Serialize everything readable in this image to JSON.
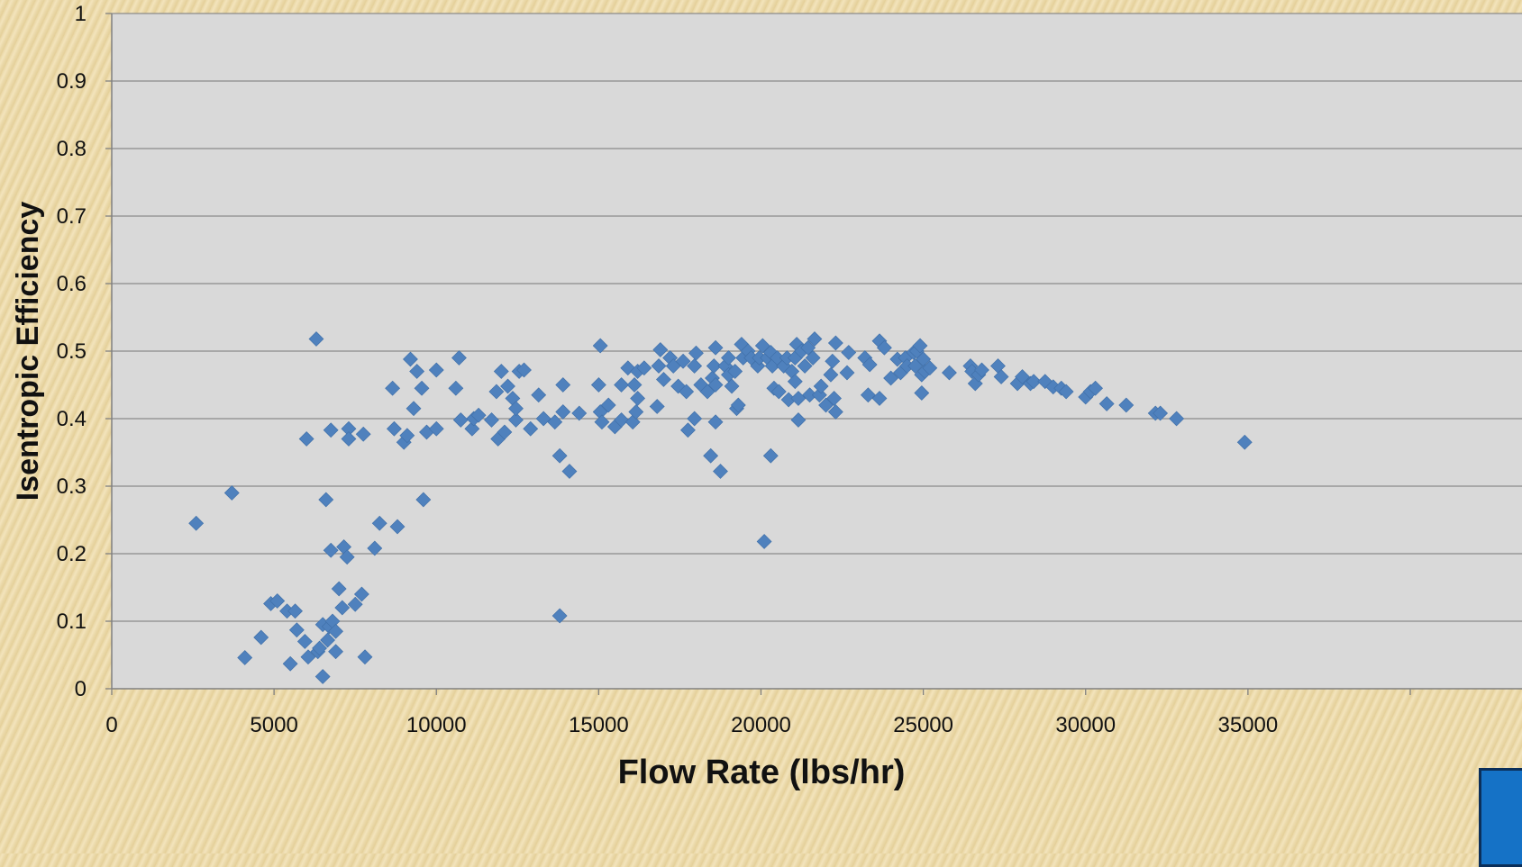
{
  "chart_data": {
    "type": "scatter",
    "title": "",
    "xlabel": "Flow Rate (lbs/hr)",
    "ylabel": "Isentropic Efficiency",
    "xlim": [
      0,
      40000
    ],
    "ylim": [
      0,
      1
    ],
    "x_ticks": [
      "0",
      "5000",
      "10000",
      "15000",
      "20000",
      "25000",
      "30000",
      "35000"
    ],
    "y_ticks": [
      "0",
      "0.1",
      "0.2",
      "0.3",
      "0.4",
      "0.5",
      "0.6",
      "0.7",
      "0.8",
      "0.9",
      "1"
    ],
    "grid": "horizontal",
    "marker": "diamond",
    "color": "#4f81bd",
    "series": [
      {
        "points": [
          [
            2600,
            0.245
          ],
          [
            3700,
            0.29
          ],
          [
            4100,
            0.046
          ],
          [
            4600,
            0.076
          ],
          [
            4900,
            0.126
          ],
          [
            5100,
            0.13
          ],
          [
            5400,
            0.115
          ],
          [
            5500,
            0.037
          ],
          [
            5650,
            0.115
          ],
          [
            5700,
            0.087
          ],
          [
            5950,
            0.07
          ],
          [
            6000,
            0.37
          ],
          [
            6050,
            0.047
          ],
          [
            6300,
            0.518
          ],
          [
            6350,
            0.055
          ],
          [
            6400,
            0.06
          ],
          [
            6500,
            0.018
          ],
          [
            6500,
            0.095
          ],
          [
            6600,
            0.28
          ],
          [
            6650,
            0.072
          ],
          [
            6700,
            0.092
          ],
          [
            6750,
            0.383
          ],
          [
            6750,
            0.205
          ],
          [
            6800,
            0.1
          ],
          [
            6900,
            0.055
          ],
          [
            6900,
            0.085
          ],
          [
            7000,
            0.148
          ],
          [
            7100,
            0.12
          ],
          [
            7150,
            0.21
          ],
          [
            7250,
            0.195
          ],
          [
            7300,
            0.385
          ],
          [
            7300,
            0.37
          ],
          [
            7500,
            0.125
          ],
          [
            7700,
            0.14
          ],
          [
            7750,
            0.377
          ],
          [
            7800,
            0.047
          ],
          [
            8100,
            0.208
          ],
          [
            8250,
            0.245
          ],
          [
            8650,
            0.445
          ],
          [
            8700,
            0.385
          ],
          [
            8800,
            0.24
          ],
          [
            9000,
            0.365
          ],
          [
            9100,
            0.375
          ],
          [
            9200,
            0.488
          ],
          [
            9300,
            0.415
          ],
          [
            9400,
            0.47
          ],
          [
            9550,
            0.445
          ],
          [
            9600,
            0.28
          ],
          [
            9700,
            0.38
          ],
          [
            10000,
            0.472
          ],
          [
            10000,
            0.385
          ],
          [
            10600,
            0.445
          ],
          [
            10700,
            0.49
          ],
          [
            10750,
            0.398
          ],
          [
            11100,
            0.385
          ],
          [
            11150,
            0.4
          ],
          [
            11300,
            0.405
          ],
          [
            11700,
            0.398
          ],
          [
            11850,
            0.44
          ],
          [
            11900,
            0.37
          ],
          [
            12000,
            0.47
          ],
          [
            12100,
            0.38
          ],
          [
            12200,
            0.448
          ],
          [
            12350,
            0.43
          ],
          [
            12450,
            0.398
          ],
          [
            12450,
            0.415
          ],
          [
            12550,
            0.47
          ],
          [
            12700,
            0.472
          ],
          [
            12900,
            0.385
          ],
          [
            13150,
            0.435
          ],
          [
            13300,
            0.4
          ],
          [
            13650,
            0.395
          ],
          [
            13800,
            0.345
          ],
          [
            13800,
            0.108
          ],
          [
            13900,
            0.45
          ],
          [
            13900,
            0.41
          ],
          [
            14100,
            0.322
          ],
          [
            14400,
            0.408
          ],
          [
            15000,
            0.45
          ],
          [
            15050,
            0.508
          ],
          [
            15050,
            0.41
          ],
          [
            15100,
            0.395
          ],
          [
            15300,
            0.42
          ],
          [
            15500,
            0.388
          ],
          [
            15700,
            0.45
          ],
          [
            15700,
            0.398
          ],
          [
            15900,
            0.475
          ],
          [
            16050,
            0.395
          ],
          [
            16100,
            0.45
          ],
          [
            16150,
            0.41
          ],
          [
            16200,
            0.43
          ],
          [
            16200,
            0.47
          ],
          [
            16400,
            0.475
          ],
          [
            16800,
            0.418
          ],
          [
            16850,
            0.478
          ],
          [
            16900,
            0.502
          ],
          [
            17000,
            0.458
          ],
          [
            17200,
            0.49
          ],
          [
            17300,
            0.478
          ],
          [
            17450,
            0.448
          ],
          [
            17600,
            0.485
          ],
          [
            17700,
            0.44
          ],
          [
            17750,
            0.383
          ],
          [
            17950,
            0.4
          ],
          [
            17950,
            0.478
          ],
          [
            18000,
            0.497
          ],
          [
            18150,
            0.45
          ],
          [
            18350,
            0.44
          ],
          [
            18450,
            0.345
          ],
          [
            18500,
            0.46
          ],
          [
            18550,
            0.478
          ],
          [
            18600,
            0.505
          ],
          [
            18600,
            0.395
          ],
          [
            18600,
            0.45
          ],
          [
            18750,
            0.322
          ],
          [
            18900,
            0.478
          ],
          [
            19000,
            0.49
          ],
          [
            19000,
            0.465
          ],
          [
            19100,
            0.448
          ],
          [
            19200,
            0.47
          ],
          [
            19250,
            0.415
          ],
          [
            19300,
            0.42
          ],
          [
            19400,
            0.51
          ],
          [
            19450,
            0.49
          ],
          [
            19600,
            0.5
          ],
          [
            19700,
            0.49
          ],
          [
            19900,
            0.478
          ],
          [
            19950,
            0.49
          ],
          [
            20050,
            0.508
          ],
          [
            20100,
            0.218
          ],
          [
            20200,
            0.49
          ],
          [
            20300,
            0.345
          ],
          [
            20300,
            0.498
          ],
          [
            20350,
            0.478
          ],
          [
            20400,
            0.445
          ],
          [
            20500,
            0.49
          ],
          [
            20550,
            0.44
          ],
          [
            20700,
            0.478
          ],
          [
            20800,
            0.49
          ],
          [
            20850,
            0.428
          ],
          [
            20950,
            0.47
          ],
          [
            21050,
            0.49
          ],
          [
            21050,
            0.455
          ],
          [
            21100,
            0.51
          ],
          [
            21150,
            0.43
          ],
          [
            21150,
            0.398
          ],
          [
            21250,
            0.5
          ],
          [
            21350,
            0.478
          ],
          [
            21450,
            0.505
          ],
          [
            21500,
            0.435
          ],
          [
            21600,
            0.49
          ],
          [
            21650,
            0.518
          ],
          [
            21800,
            0.435
          ],
          [
            21850,
            0.448
          ],
          [
            22000,
            0.42
          ],
          [
            22150,
            0.465
          ],
          [
            22200,
            0.485
          ],
          [
            22250,
            0.43
          ],
          [
            22300,
            0.512
          ],
          [
            22300,
            0.41
          ],
          [
            22650,
            0.468
          ],
          [
            22700,
            0.498
          ],
          [
            23200,
            0.49
          ],
          [
            23300,
            0.435
          ],
          [
            23350,
            0.48
          ],
          [
            23650,
            0.43
          ],
          [
            23650,
            0.515
          ],
          [
            23800,
            0.505
          ],
          [
            24000,
            0.46
          ],
          [
            24200,
            0.488
          ],
          [
            24300,
            0.468
          ],
          [
            24450,
            0.49
          ],
          [
            24500,
            0.478
          ],
          [
            24700,
            0.498
          ],
          [
            24750,
            0.478
          ],
          [
            24800,
            0.5
          ],
          [
            24900,
            0.508
          ],
          [
            24950,
            0.465
          ],
          [
            24950,
            0.438
          ],
          [
            25000,
            0.488
          ],
          [
            25050,
            0.47
          ],
          [
            25200,
            0.475
          ],
          [
            25800,
            0.468
          ],
          [
            26450,
            0.478
          ],
          [
            26500,
            0.47
          ],
          [
            26600,
            0.452
          ],
          [
            26700,
            0.465
          ],
          [
            26800,
            0.472
          ],
          [
            27300,
            0.478
          ],
          [
            27400,
            0.462
          ],
          [
            27900,
            0.452
          ],
          [
            28050,
            0.462
          ],
          [
            28300,
            0.452
          ],
          [
            28400,
            0.455
          ],
          [
            28750,
            0.455
          ],
          [
            29000,
            0.447
          ],
          [
            29250,
            0.445
          ],
          [
            29400,
            0.44
          ],
          [
            30000,
            0.432
          ],
          [
            30150,
            0.44
          ],
          [
            30300,
            0.445
          ],
          [
            30650,
            0.422
          ],
          [
            31250,
            0.42
          ],
          [
            32150,
            0.408
          ],
          [
            32300,
            0.408
          ],
          [
            32800,
            0.4
          ],
          [
            34900,
            0.365
          ]
        ]
      }
    ]
  }
}
